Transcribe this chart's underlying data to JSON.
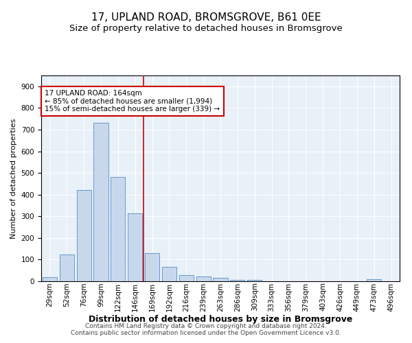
{
  "title": "17, UPLAND ROAD, BROMSGROVE, B61 0EE",
  "subtitle": "Size of property relative to detached houses in Bromsgrove",
  "xlabel": "Distribution of detached houses by size in Bromsgrove",
  "ylabel": "Number of detached properties",
  "categories": [
    "29sqm",
    "52sqm",
    "76sqm",
    "99sqm",
    "122sqm",
    "146sqm",
    "169sqm",
    "192sqm",
    "216sqm",
    "239sqm",
    "263sqm",
    "286sqm",
    "309sqm",
    "333sqm",
    "356sqm",
    "379sqm",
    "403sqm",
    "426sqm",
    "449sqm",
    "473sqm",
    "496sqm"
  ],
  "values": [
    18,
    122,
    420,
    730,
    480,
    315,
    130,
    65,
    28,
    22,
    15,
    5,
    5,
    0,
    0,
    0,
    0,
    0,
    0,
    10,
    0
  ],
  "bar_color": "#c8d8ec",
  "bar_edge_color": "#6699cc",
  "vline_color": "#cc0000",
  "vline_index": 6,
  "annotation_text": "17 UPLAND ROAD: 164sqm\n← 85% of detached houses are smaller (1,994)\n15% of semi-detached houses are larger (339) →",
  "annotation_box_color": "#ffffff",
  "annotation_box_edge": "#cc0000",
  "ylim": [
    0,
    950
  ],
  "yticks": [
    0,
    100,
    200,
    300,
    400,
    500,
    600,
    700,
    800,
    900
  ],
  "background_color": "#e8f0f8",
  "grid_color": "#ffffff",
  "footer": "Contains HM Land Registry data © Crown copyright and database right 2024.\nContains public sector information licensed under the Open Government Licence v3.0.",
  "title_fontsize": 11,
  "subtitle_fontsize": 9.5,
  "xlabel_fontsize": 9,
  "ylabel_fontsize": 8,
  "tick_fontsize": 7.5
}
